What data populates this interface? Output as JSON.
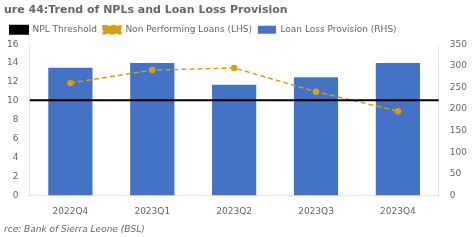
{
  "chart_data": {
    "type": "bar",
    "title": "ure 44:Trend of NPLs and Loan Loss Provision",
    "annotations": [
      "rce: Bank of Sierra Leone (BSL)"
    ],
    "categories": [
      "2022Q4",
      "2023Q1",
      "2023Q2",
      "2023Q3",
      "2023Q4"
    ],
    "series": [
      {
        "name": "Loan Loss Provision (RHS)",
        "type": "bar",
        "color": "#4472C4",
        "values": [
          13.5,
          14.0,
          11.7,
          12.5,
          14.0
        ]
      },
      {
        "name": "Non Performing Loans (LHS)",
        "type": "line",
        "axis": "y2",
        "color": "#D4A017",
        "line_style": "dashed",
        "marker": "o",
        "values": [
          260,
          290,
          295,
          240,
          195
        ]
      },
      {
        "name": "NPL Threshold",
        "type": "hline",
        "axis": "y2",
        "color": "#000000",
        "value": 220
      }
    ],
    "ylim": [
      0,
      16
    ],
    "yticks": [
      0,
      2,
      4,
      6,
      8,
      10,
      12,
      14,
      16
    ],
    "y2lim": [
      0,
      350
    ],
    "y2ticks": [
      0,
      50,
      100,
      150,
      200,
      250,
      300,
      350
    ],
    "grid": false,
    "legend": "top"
  }
}
